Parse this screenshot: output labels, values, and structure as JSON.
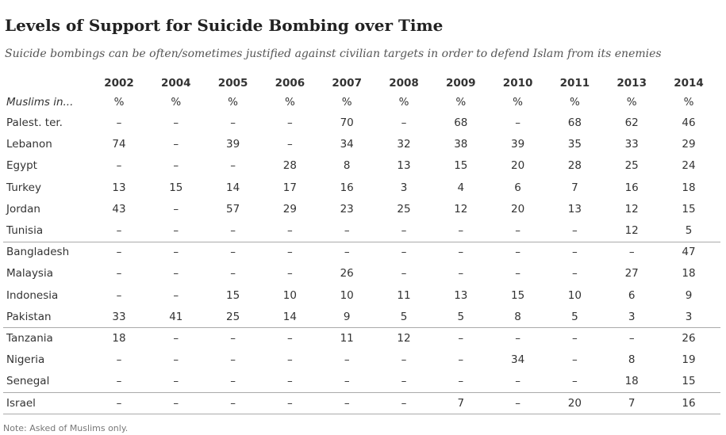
{
  "header": {
    "title": "Levels of Support for Suicide Bombing over Time",
    "subtitle": "Suicide bombings can be often/sometimes justified against civilian targets in order to defend Islam from its enemies"
  },
  "table": {
    "columns": [
      "2002",
      "2004",
      "2005",
      "2006",
      "2007",
      "2008",
      "2009",
      "2010",
      "2011",
      "2013",
      "2014"
    ],
    "row_heading": "Muslims in...",
    "units": [
      "%",
      "%",
      "%",
      "%",
      "%",
      "%",
      "%",
      "%",
      "%",
      "%",
      "%"
    ],
    "groups": [
      [
        {
          "label": "Palest. ter.",
          "cells": [
            "–",
            "–",
            "–",
            "–",
            70,
            "–",
            68,
            "–",
            68,
            62,
            46
          ]
        },
        {
          "label": "Lebanon",
          "cells": [
            74,
            "–",
            39,
            "–",
            34,
            32,
            38,
            39,
            35,
            33,
            29
          ]
        },
        {
          "label": "Egypt",
          "cells": [
            "–",
            "–",
            "–",
            28,
            8,
            13,
            15,
            20,
            28,
            25,
            24
          ]
        },
        {
          "label": "Turkey",
          "cells": [
            13,
            15,
            14,
            17,
            16,
            3,
            4,
            6,
            7,
            16,
            18
          ]
        },
        {
          "label": "Jordan",
          "cells": [
            43,
            "–",
            57,
            29,
            23,
            25,
            12,
            20,
            13,
            12,
            15
          ]
        },
        {
          "label": "Tunisia",
          "cells": [
            "–",
            "–",
            "–",
            "–",
            "–",
            "–",
            "–",
            "–",
            "–",
            12,
            5
          ]
        }
      ],
      [
        {
          "label": "Bangladesh",
          "cells": [
            "–",
            "–",
            "–",
            "–",
            "–",
            "–",
            "–",
            "–",
            "–",
            "–",
            47
          ]
        },
        {
          "label": "Malaysia",
          "cells": [
            "–",
            "–",
            "–",
            "–",
            26,
            "–",
            "–",
            "–",
            "–",
            27,
            18
          ]
        },
        {
          "label": "Indonesia",
          "cells": [
            "–",
            "–",
            15,
            10,
            10,
            11,
            13,
            15,
            10,
            6,
            9
          ]
        },
        {
          "label": "Pakistan",
          "cells": [
            33,
            41,
            25,
            14,
            9,
            5,
            5,
            8,
            5,
            3,
            3
          ]
        }
      ],
      [
        {
          "label": "Tanzania",
          "cells": [
            18,
            "–",
            "–",
            "–",
            11,
            12,
            "–",
            "–",
            "–",
            "–",
            26
          ]
        },
        {
          "label": "Nigeria",
          "cells": [
            "–",
            "–",
            "–",
            "–",
            "–",
            "–",
            "–",
            34,
            "–",
            8,
            19
          ]
        },
        {
          "label": "Senegal",
          "cells": [
            "–",
            "–",
            "–",
            "–",
            "–",
            "–",
            "–",
            "–",
            "–",
            18,
            15
          ]
        }
      ],
      [
        {
          "label": "Israel",
          "cells": [
            "–",
            "–",
            "–",
            "–",
            "–",
            "–",
            7,
            "–",
            20,
            7,
            16
          ]
        }
      ]
    ]
  },
  "footer": {
    "note": "Note: Asked of Muslims only."
  }
}
